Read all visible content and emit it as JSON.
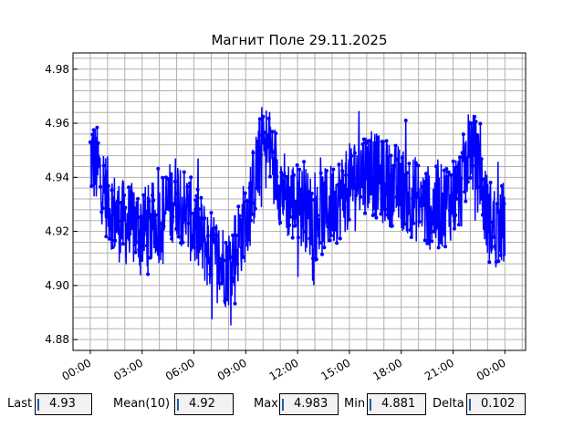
{
  "chart_data": {
    "type": "line",
    "title": "Магнит Поле 29.11.2025",
    "xlabel": "",
    "ylabel": "",
    "x_ticks": [
      "00:00",
      "03:00",
      "06:00",
      "09:00",
      "12:00",
      "15:00",
      "18:00",
      "21:00",
      "00:00"
    ],
    "x_range_hours": [
      -1.0,
      25.2
    ],
    "y_ticks": [
      "4.88",
      "4.90",
      "4.92",
      "4.94",
      "4.96",
      "4.98"
    ],
    "ylim": [
      4.876,
      4.986
    ],
    "grid": true,
    "minor_grid": true,
    "series": [
      {
        "color": "#0000ff",
        "marker": "circle",
        "hours": [
          0,
          0.5,
          1,
          1.5,
          2,
          2.5,
          3,
          3.5,
          4,
          4.5,
          5,
          5.5,
          6,
          6.5,
          7,
          7.5,
          8,
          8.5,
          9,
          9.5,
          10,
          10.5,
          11,
          11.5,
          12,
          12.5,
          13,
          13.5,
          14,
          14.5,
          15,
          15.5,
          16,
          16.5,
          17,
          17.5,
          18,
          18.5,
          19,
          19.5,
          20,
          20.5,
          21,
          21.5,
          22,
          22.5,
          23,
          23.5,
          24
        ],
        "values": [
          4.948,
          4.942,
          4.932,
          4.925,
          4.923,
          4.922,
          4.921,
          4.922,
          4.924,
          4.929,
          4.934,
          4.928,
          4.922,
          4.917,
          4.912,
          4.909,
          4.907,
          4.915,
          4.925,
          4.938,
          4.953,
          4.949,
          4.937,
          4.932,
          4.93,
          4.928,
          4.924,
          4.927,
          4.93,
          4.933,
          4.937,
          4.941,
          4.943,
          4.941,
          4.938,
          4.937,
          4.936,
          4.934,
          4.931,
          4.929,
          4.928,
          4.93,
          4.933,
          4.937,
          4.953,
          4.941,
          4.925,
          4.921,
          4.923
        ]
      }
    ]
  },
  "stats": [
    {
      "label": "Last",
      "value": "4.93"
    },
    {
      "label": "Mean(10)",
      "value": "4.92"
    },
    {
      "label": "Max",
      "value": "4.983"
    },
    {
      "label": "Min",
      "value": "4.881"
    },
    {
      "label": "Delta",
      "value": "0.102"
    }
  ]
}
